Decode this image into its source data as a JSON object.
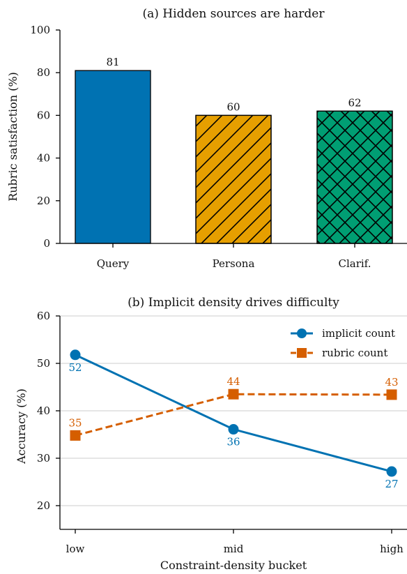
{
  "chart_data": [
    {
      "type": "bar",
      "title": "(a) Hidden sources are harder",
      "xlabel": "",
      "ylabel": "Rubric satisfaction (%)",
      "ylim": [
        0,
        100
      ],
      "yticks": [
        0,
        20,
        40,
        60,
        80,
        100
      ],
      "categories": [
        "Query",
        "Persona",
        "Clarif."
      ],
      "values": [
        81,
        60,
        62
      ],
      "data_labels": [
        "81",
        "60",
        "62"
      ],
      "bar_colors": [
        "#0072b2",
        "#e69f00",
        "#009e73"
      ],
      "bar_hatches": [
        "none",
        "diagonal",
        "crosshatch"
      ],
      "grid": false
    },
    {
      "type": "line",
      "title": "(b) Implicit density drives difficulty",
      "xlabel": "Constraint-density bucket",
      "ylabel": "Accuracy (%)",
      "ylim": [
        15,
        60
      ],
      "yticks": [
        20,
        30,
        40,
        50,
        60
      ],
      "categories": [
        "low",
        "mid",
        "high"
      ],
      "series": [
        {
          "name": "implicit count",
          "values": [
            51.8,
            36.1,
            27.2
          ],
          "data_labels": [
            "52",
            "36",
            "27"
          ],
          "color": "#0072b2",
          "marker": "circle",
          "linestyle": "solid"
        },
        {
          "name": "rubric count",
          "values": [
            34.8,
            43.5,
            43.4
          ],
          "data_labels": [
            "35",
            "44",
            "43"
          ],
          "color": "#d55e00",
          "marker": "square",
          "linestyle": "dashed"
        }
      ],
      "grid": "horizontal",
      "legend": "top-right"
    }
  ]
}
